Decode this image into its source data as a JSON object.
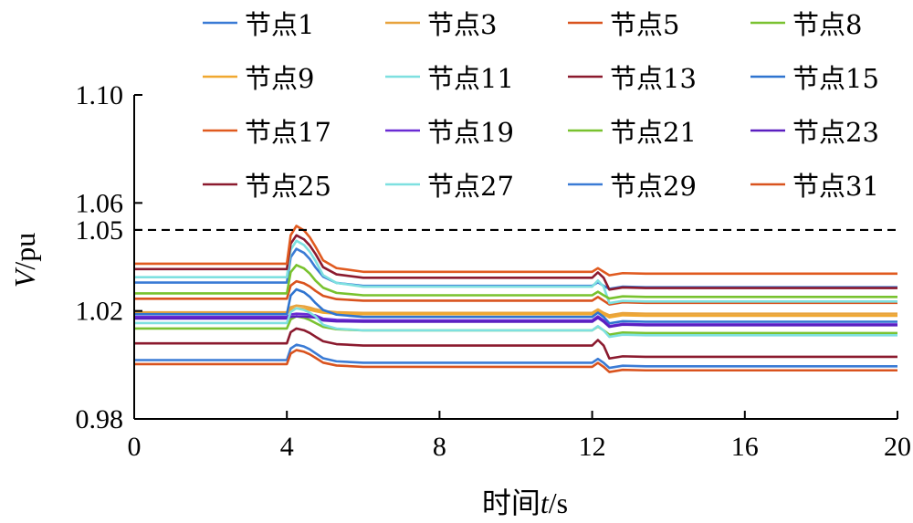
{
  "chart_data": {
    "type": "line",
    "xlabel": "时间t/s",
    "ylabel": "V/pu",
    "xlim": [
      0,
      20
    ],
    "ylim": [
      0.98,
      1.1
    ],
    "xticks": [
      0,
      4,
      8,
      12,
      16,
      20
    ],
    "xtick_labels": [
      "0",
      "4",
      "8",
      "12",
      "16",
      "20"
    ],
    "yticks": [
      0.98,
      1.02,
      1.05,
      1.06,
      1.1
    ],
    "ytick_labels": [
      "0.98",
      "1.02",
      "1.05",
      "1.06",
      "1.10"
    ],
    "reference_line": {
      "y": 1.05,
      "style": "dashed",
      "color": "#000000"
    },
    "grid": false,
    "legend": {
      "position": "top",
      "columns": 4
    },
    "series": [
      {
        "name": "节点1",
        "color": "#3a7bd5",
        "pre": 1.0305,
        "peak": 1.043,
        "post1": 1.0293,
        "final": 1.0288
      },
      {
        "name": "节点3",
        "color": "#e8a33d",
        "pre": 1.0195,
        "peak": 1.022,
        "post1": 1.0193,
        "final": 1.019
      },
      {
        "name": "节点5",
        "color": "#d9531e",
        "pre": 1.0245,
        "peak": 1.031,
        "post1": 1.0238,
        "final": 1.023
      },
      {
        "name": "节点8",
        "color": "#7ac231",
        "pre": 1.0135,
        "peak": 1.018,
        "post1": 1.0128,
        "final": 1.0118
      },
      {
        "name": "节点9",
        "color": "#f0a830",
        "pre": 1.019,
        "peak": 1.021,
        "post1": 1.0188,
        "final": 1.0182
      },
      {
        "name": "节点11",
        "color": "#7ee0e0",
        "pre": 1.0325,
        "peak": 1.046,
        "post1": 1.029,
        "final": 1.0235
      },
      {
        "name": "节点13",
        "color": "#8b1a2e",
        "pre": 1.0355,
        "peak": 1.048,
        "post1": 1.0323,
        "final": 1.0285
      },
      {
        "name": "节点15",
        "color": "#2f74d0",
        "pre": 1.0188,
        "peak": 1.028,
        "post1": 1.0178,
        "final": 1.016
      },
      {
        "name": "节点17",
        "color": "#e05a1f",
        "pre": 1.0375,
        "peak": 1.0515,
        "post1": 1.0345,
        "final": 1.0338
      },
      {
        "name": "节点19",
        "color": "#6a2bd4",
        "pre": 1.0178,
        "peak": 1.019,
        "post1": 1.0165,
        "final": 1.015
      },
      {
        "name": "节点21",
        "color": "#78c22e",
        "pre": 1.0265,
        "peak": 1.037,
        "post1": 1.0258,
        "final": 1.0252
      },
      {
        "name": "节点23",
        "color": "#5a1fc0",
        "pre": 1.0172,
        "peak": 1.018,
        "post1": 1.016,
        "final": 1.0147
      },
      {
        "name": "节点25",
        "color": "#8b1a2e",
        "pre": 1.008,
        "peak": 1.0135,
        "post1": 1.0072,
        "final": 1.003
      },
      {
        "name": "节点27",
        "color": "#7ee0e0",
        "pre": 1.0155,
        "peak": 1.021,
        "post1": 1.0128,
        "final": 1.011
      },
      {
        "name": "节点29",
        "color": "#3a7bd5",
        "pre": 1.0018,
        "peak": 1.0075,
        "post1": 1.0008,
        "final": 0.9995
      },
      {
        "name": "节点31",
        "color": "#d9531e",
        "pre": 1.0003,
        "peak": 1.0055,
        "post1": 0.9993,
        "final": 0.998
      }
    ]
  }
}
